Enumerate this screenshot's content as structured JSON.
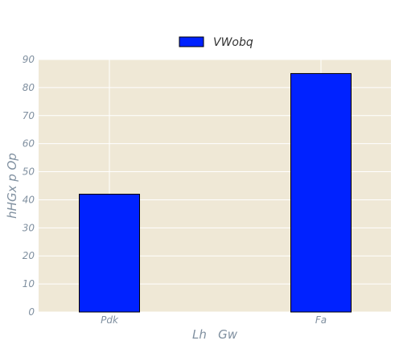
{
  "chart_data": {
    "type": "bar",
    "categories": [
      "Pdk",
      "Fa"
    ],
    "series": [
      {
        "name": "VWobq",
        "values": [
          42,
          85
        ],
        "color": "#0022ff"
      }
    ],
    "xlabel": "Lh   Gw",
    "ylabel": "hHGx p Op",
    "ylim": [
      0,
      90
    ],
    "yticks": [
      0,
      10,
      20,
      30,
      40,
      50,
      60,
      70,
      80,
      90
    ],
    "grid": true,
    "legend_position": "top-center",
    "plot_background": "#efe8d6",
    "grid_color": "#ffffff",
    "bar_edge_color": "#000000",
    "tick_color": "#8090a0"
  }
}
